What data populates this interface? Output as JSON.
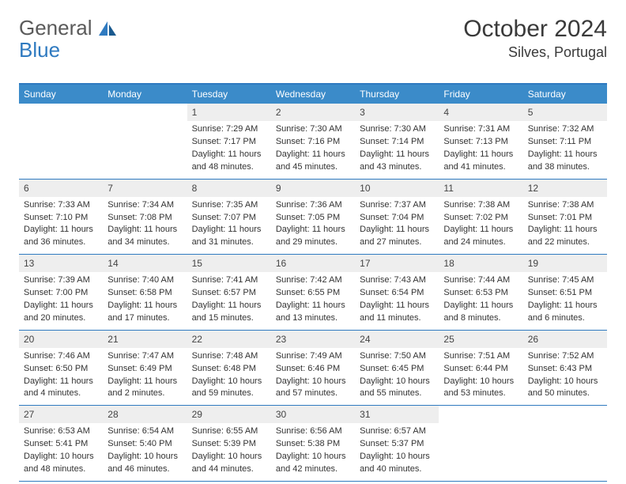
{
  "logo": {
    "text1": "General",
    "text2": "Blue",
    "accent_color": "#2f7ac0"
  },
  "title": {
    "month": "October 2024",
    "location": "Silves, Portugal"
  },
  "colors": {
    "header_bg": "#3b8bc9",
    "header_text": "#ffffff",
    "border": "#2f7ac0",
    "daynum_bg": "#eeeeee",
    "text": "#333333"
  },
  "day_names": [
    "Sunday",
    "Monday",
    "Tuesday",
    "Wednesday",
    "Thursday",
    "Friday",
    "Saturday"
  ],
  "weeks": [
    [
      null,
      null,
      {
        "n": "1",
        "sunrise": "Sunrise: 7:29 AM",
        "sunset": "Sunset: 7:17 PM",
        "day1": "Daylight: 11 hours",
        "day2": "and 48 minutes."
      },
      {
        "n": "2",
        "sunrise": "Sunrise: 7:30 AM",
        "sunset": "Sunset: 7:16 PM",
        "day1": "Daylight: 11 hours",
        "day2": "and 45 minutes."
      },
      {
        "n": "3",
        "sunrise": "Sunrise: 7:30 AM",
        "sunset": "Sunset: 7:14 PM",
        "day1": "Daylight: 11 hours",
        "day2": "and 43 minutes."
      },
      {
        "n": "4",
        "sunrise": "Sunrise: 7:31 AM",
        "sunset": "Sunset: 7:13 PM",
        "day1": "Daylight: 11 hours",
        "day2": "and 41 minutes."
      },
      {
        "n": "5",
        "sunrise": "Sunrise: 7:32 AM",
        "sunset": "Sunset: 7:11 PM",
        "day1": "Daylight: 11 hours",
        "day2": "and 38 minutes."
      }
    ],
    [
      {
        "n": "6",
        "sunrise": "Sunrise: 7:33 AM",
        "sunset": "Sunset: 7:10 PM",
        "day1": "Daylight: 11 hours",
        "day2": "and 36 minutes."
      },
      {
        "n": "7",
        "sunrise": "Sunrise: 7:34 AM",
        "sunset": "Sunset: 7:08 PM",
        "day1": "Daylight: 11 hours",
        "day2": "and 34 minutes."
      },
      {
        "n": "8",
        "sunrise": "Sunrise: 7:35 AM",
        "sunset": "Sunset: 7:07 PM",
        "day1": "Daylight: 11 hours",
        "day2": "and 31 minutes."
      },
      {
        "n": "9",
        "sunrise": "Sunrise: 7:36 AM",
        "sunset": "Sunset: 7:05 PM",
        "day1": "Daylight: 11 hours",
        "day2": "and 29 minutes."
      },
      {
        "n": "10",
        "sunrise": "Sunrise: 7:37 AM",
        "sunset": "Sunset: 7:04 PM",
        "day1": "Daylight: 11 hours",
        "day2": "and 27 minutes."
      },
      {
        "n": "11",
        "sunrise": "Sunrise: 7:38 AM",
        "sunset": "Sunset: 7:02 PM",
        "day1": "Daylight: 11 hours",
        "day2": "and 24 minutes."
      },
      {
        "n": "12",
        "sunrise": "Sunrise: 7:38 AM",
        "sunset": "Sunset: 7:01 PM",
        "day1": "Daylight: 11 hours",
        "day2": "and 22 minutes."
      }
    ],
    [
      {
        "n": "13",
        "sunrise": "Sunrise: 7:39 AM",
        "sunset": "Sunset: 7:00 PM",
        "day1": "Daylight: 11 hours",
        "day2": "and 20 minutes."
      },
      {
        "n": "14",
        "sunrise": "Sunrise: 7:40 AM",
        "sunset": "Sunset: 6:58 PM",
        "day1": "Daylight: 11 hours",
        "day2": "and 17 minutes."
      },
      {
        "n": "15",
        "sunrise": "Sunrise: 7:41 AM",
        "sunset": "Sunset: 6:57 PM",
        "day1": "Daylight: 11 hours",
        "day2": "and 15 minutes."
      },
      {
        "n": "16",
        "sunrise": "Sunrise: 7:42 AM",
        "sunset": "Sunset: 6:55 PM",
        "day1": "Daylight: 11 hours",
        "day2": "and 13 minutes."
      },
      {
        "n": "17",
        "sunrise": "Sunrise: 7:43 AM",
        "sunset": "Sunset: 6:54 PM",
        "day1": "Daylight: 11 hours",
        "day2": "and 11 minutes."
      },
      {
        "n": "18",
        "sunrise": "Sunrise: 7:44 AM",
        "sunset": "Sunset: 6:53 PM",
        "day1": "Daylight: 11 hours",
        "day2": "and 8 minutes."
      },
      {
        "n": "19",
        "sunrise": "Sunrise: 7:45 AM",
        "sunset": "Sunset: 6:51 PM",
        "day1": "Daylight: 11 hours",
        "day2": "and 6 minutes."
      }
    ],
    [
      {
        "n": "20",
        "sunrise": "Sunrise: 7:46 AM",
        "sunset": "Sunset: 6:50 PM",
        "day1": "Daylight: 11 hours",
        "day2": "and 4 minutes."
      },
      {
        "n": "21",
        "sunrise": "Sunrise: 7:47 AM",
        "sunset": "Sunset: 6:49 PM",
        "day1": "Daylight: 11 hours",
        "day2": "and 2 minutes."
      },
      {
        "n": "22",
        "sunrise": "Sunrise: 7:48 AM",
        "sunset": "Sunset: 6:48 PM",
        "day1": "Daylight: 10 hours",
        "day2": "and 59 minutes."
      },
      {
        "n": "23",
        "sunrise": "Sunrise: 7:49 AM",
        "sunset": "Sunset: 6:46 PM",
        "day1": "Daylight: 10 hours",
        "day2": "and 57 minutes."
      },
      {
        "n": "24",
        "sunrise": "Sunrise: 7:50 AM",
        "sunset": "Sunset: 6:45 PM",
        "day1": "Daylight: 10 hours",
        "day2": "and 55 minutes."
      },
      {
        "n": "25",
        "sunrise": "Sunrise: 7:51 AM",
        "sunset": "Sunset: 6:44 PM",
        "day1": "Daylight: 10 hours",
        "day2": "and 53 minutes."
      },
      {
        "n": "26",
        "sunrise": "Sunrise: 7:52 AM",
        "sunset": "Sunset: 6:43 PM",
        "day1": "Daylight: 10 hours",
        "day2": "and 50 minutes."
      }
    ],
    [
      {
        "n": "27",
        "sunrise": "Sunrise: 6:53 AM",
        "sunset": "Sunset: 5:41 PM",
        "day1": "Daylight: 10 hours",
        "day2": "and 48 minutes."
      },
      {
        "n": "28",
        "sunrise": "Sunrise: 6:54 AM",
        "sunset": "Sunset: 5:40 PM",
        "day1": "Daylight: 10 hours",
        "day2": "and 46 minutes."
      },
      {
        "n": "29",
        "sunrise": "Sunrise: 6:55 AM",
        "sunset": "Sunset: 5:39 PM",
        "day1": "Daylight: 10 hours",
        "day2": "and 44 minutes."
      },
      {
        "n": "30",
        "sunrise": "Sunrise: 6:56 AM",
        "sunset": "Sunset: 5:38 PM",
        "day1": "Daylight: 10 hours",
        "day2": "and 42 minutes."
      },
      {
        "n": "31",
        "sunrise": "Sunrise: 6:57 AM",
        "sunset": "Sunset: 5:37 PM",
        "day1": "Daylight: 10 hours",
        "day2": "and 40 minutes."
      },
      null,
      null
    ]
  ]
}
